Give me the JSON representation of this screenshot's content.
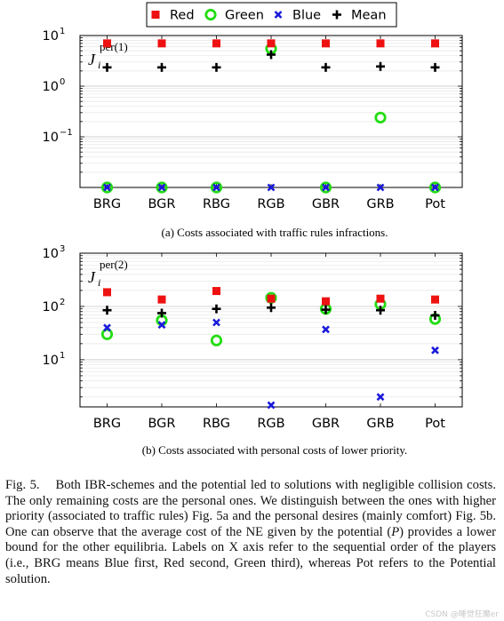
{
  "legend": {
    "entries": [
      {
        "name": "Red",
        "marker": "square",
        "color": "#ee1111"
      },
      {
        "name": "Green",
        "marker": "circle",
        "color": "#22dd11"
      },
      {
        "name": "Blue",
        "marker": "x",
        "color": "#1a1adc"
      },
      {
        "name": "Mean",
        "marker": "plus",
        "color": "#000000"
      }
    ]
  },
  "chart_data": [
    {
      "type": "scatter",
      "ylabel_base": "J",
      "ylabel_sub": "i",
      "ylabel_sup": "per(1)",
      "yscale": "log",
      "ylim": [
        0.01,
        10
      ],
      "ytick_values": [
        10,
        1,
        0.1
      ],
      "ytick_labels": [
        {
          "base": "10",
          "exp": "1"
        },
        {
          "base": "10",
          "exp": "0"
        },
        {
          "base": "10",
          "exp": "−1"
        }
      ],
      "categories": [
        "BRG",
        "BGR",
        "RBG",
        "RGB",
        "GBR",
        "GRB",
        "Pot"
      ],
      "series": [
        {
          "name": "Red",
          "values": [
            7.0,
            7.0,
            7.0,
            7.0,
            7.0,
            7.0,
            7.0
          ]
        },
        {
          "name": "Green",
          "values": [
            0.01,
            0.01,
            0.01,
            5.5,
            0.01,
            0.24,
            0.01
          ]
        },
        {
          "name": "Blue",
          "values": [
            0.01,
            0.01,
            0.01,
            0.01,
            0.01,
            0.01,
            0.01
          ]
        },
        {
          "name": "Mean",
          "values": [
            2.35,
            2.35,
            2.35,
            4.2,
            2.35,
            2.45,
            2.35
          ]
        }
      ],
      "caption": "(a) Costs associated with traffic rules infractions."
    },
    {
      "type": "scatter",
      "ylabel_base": "J",
      "ylabel_sub": "i",
      "ylabel_sup": "per(2)",
      "yscale": "log",
      "ylim": [
        1.3,
        1000
      ],
      "ytick_values": [
        1000,
        100,
        10
      ],
      "ytick_labels": [
        {
          "base": "10",
          "exp": "3"
        },
        {
          "base": "10",
          "exp": "2"
        },
        {
          "base": "10",
          "exp": "1"
        }
      ],
      "categories": [
        "BRG",
        "BGR",
        "RBG",
        "RGB",
        "GBR",
        "GRB",
        "Pot"
      ],
      "series": [
        {
          "name": "Red",
          "values": [
            185,
            135,
            195,
            140,
            125,
            140,
            135
          ]
        },
        {
          "name": "Green",
          "values": [
            30,
            55,
            23,
            145,
            90,
            110,
            58
          ]
        },
        {
          "name": "Blue",
          "values": [
            40,
            45,
            50,
            1.4,
            37,
            2.0,
            15
          ]
        },
        {
          "name": "Mean",
          "values": [
            85,
            75,
            90,
            95,
            87,
            85,
            68
          ]
        }
      ],
      "caption": "(b) Costs associated with personal costs of lower priority."
    }
  ],
  "caption": {
    "label": "Fig. 5.",
    "text": "Both IBR-schemes and the potential led to solutions with negligible collision costs. The only remaining costs are the personal ones. We distinguish between the ones with higher priority (associated to traffic rules) Fig. 5a and the personal desires (mainly comfort) Fig. 5b. One can observe that the average cost of the NE given by the potential (",
    "symbol": "P",
    "text_after": ") provides a lower bound for the other equilibria. Labels on X axis refer to the sequential order of the players (i.e., BRG means Blue first, Red second, Green third), whereas Pot refers to the Potential solution."
  },
  "watermark": "CSDN @睡觉狂魔er"
}
